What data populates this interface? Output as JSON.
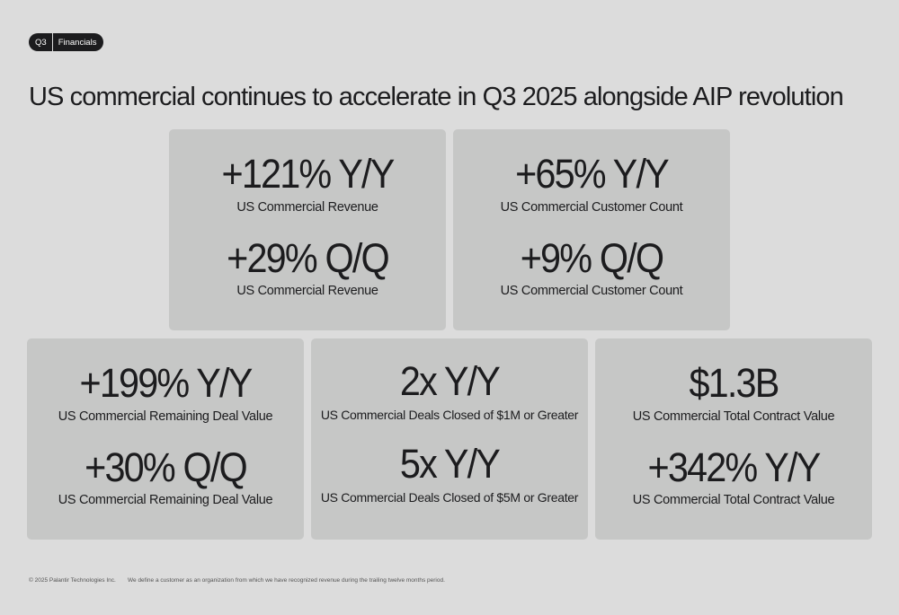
{
  "badge": {
    "left": "Q3",
    "right": "Financials"
  },
  "title": "US commercial continues to accelerate in Q3 2025 alongside AIP revolution",
  "cards": [
    {
      "metric1": "+121% Y/Y",
      "label1": "US Commercial Revenue",
      "metric2": "+29% Q/Q",
      "label2": "US Commercial Revenue"
    },
    {
      "metric1": "+65% Y/Y",
      "label1": "US Commercial Customer Count",
      "metric2": "+9% Q/Q",
      "label2": "US Commercial Customer Count"
    },
    {
      "metric1": "+199% Y/Y",
      "label1": "US Commercial Remaining Deal Value",
      "metric2": "+30% Q/Q",
      "label2": "US Commercial Remaining Deal Value"
    },
    {
      "metric1": "2x Y/Y",
      "label1": "US Commercial Deals Closed of $1M or Greater",
      "metric2": "5x Y/Y",
      "label2": "US Commercial Deals Closed of $5M or Greater"
    },
    {
      "metric1": "$1.3B",
      "label1": "US Commercial Total Contract Value",
      "metric2": "+342% Y/Y",
      "label2": "US Commercial Total Contract Value"
    }
  ],
  "footer": {
    "copyright": "© 2025 Palantir Technologies Inc.",
    "note": "We define a customer as an organization from which we have recognized revenue during the trailing twelve months period."
  }
}
